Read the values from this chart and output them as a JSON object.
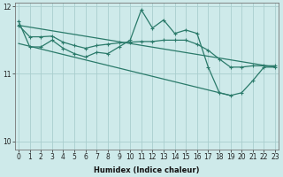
{
  "xlabel": "Humidex (Indice chaleur)",
  "background_color": "#ceeaea",
  "grid_color": "#aacece",
  "line_color": "#2a7a6a",
  "x": [
    0,
    1,
    2,
    3,
    4,
    5,
    6,
    7,
    8,
    9,
    10,
    11,
    12,
    13,
    14,
    15,
    16,
    17,
    18,
    19,
    20,
    21,
    22,
    23
  ],
  "line1": [
    11.72,
    11.55,
    11.55,
    11.56,
    11.47,
    11.42,
    11.38,
    11.42,
    11.44,
    11.46,
    11.47,
    11.48,
    11.48,
    11.5,
    11.5,
    11.5,
    11.44,
    11.35,
    11.22,
    11.1,
    11.1,
    11.12,
    11.12,
    11.12
  ],
  "line2": [
    11.78,
    11.4,
    11.4,
    11.5,
    11.38,
    11.3,
    11.25,
    11.32,
    11.3,
    11.4,
    11.5,
    11.95,
    11.68,
    11.8,
    11.6,
    11.65,
    11.6,
    11.1,
    10.72,
    10.68,
    10.72,
    10.9,
    11.1,
    11.1
  ],
  "line3_x": [
    0,
    23
  ],
  "line3_y": [
    11.72,
    11.1
  ],
  "line4_x": [
    0,
    19
  ],
  "line4_y": [
    11.45,
    10.68
  ],
  "ylim_min": 9.88,
  "ylim_max": 12.05,
  "yticks": [
    10,
    11,
    12
  ],
  "xlim_min": -0.3,
  "xlim_max": 23.3
}
